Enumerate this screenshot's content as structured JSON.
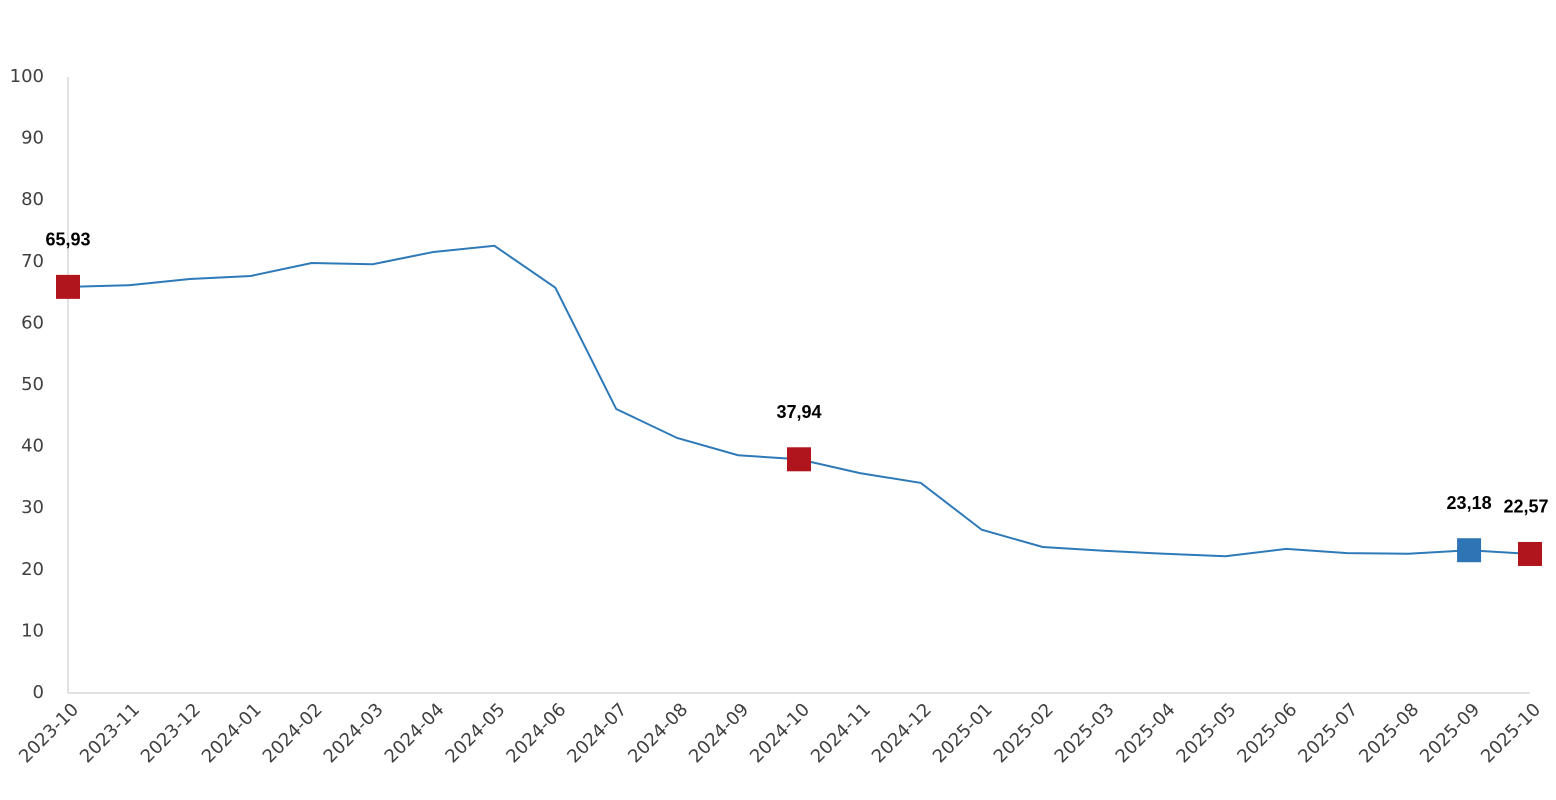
{
  "chart_data": {
    "type": "line",
    "categories": [
      "2023-10",
      "2023-11",
      "2023-12",
      "2024-01",
      "2024-02",
      "2024-03",
      "2024-04",
      "2024-05",
      "2024-06",
      "2024-07",
      "2024-08",
      "2024-09",
      "2024-10",
      "2024-11",
      "2024-12",
      "2025-01",
      "2025-02",
      "2025-03",
      "2025-04",
      "2025-05",
      "2025-06",
      "2025-07",
      "2025-08",
      "2025-09",
      "2025-10"
    ],
    "values": [
      65.93,
      66.2,
      67.2,
      67.7,
      69.8,
      69.6,
      71.6,
      72.6,
      65.8,
      46.1,
      41.4,
      38.6,
      37.94,
      35.7,
      34.1,
      26.5,
      23.7,
      23.1,
      22.6,
      22.2,
      23.4,
      22.7,
      22.6,
      23.18,
      22.57
    ],
    "value_labels": [
      "65,93",
      null,
      null,
      null,
      null,
      null,
      null,
      null,
      null,
      null,
      null,
      null,
      "37,94",
      null,
      null,
      null,
      null,
      null,
      null,
      null,
      null,
      null,
      null,
      "23,18",
      "22,57"
    ],
    "marker_colors": [
      "#b0141c",
      null,
      null,
      null,
      null,
      null,
      null,
      null,
      null,
      null,
      null,
      null,
      "#b0141c",
      null,
      null,
      null,
      null,
      null,
      null,
      null,
      null,
      null,
      null,
      "#2e75b6",
      "#b0141c"
    ],
    "color": "#2e7ab8",
    "ylim": [
      0,
      100
    ],
    "yticks": [
      0,
      10,
      20,
      30,
      40,
      50,
      60,
      70,
      80,
      90,
      100
    ],
    "grid": false
  }
}
